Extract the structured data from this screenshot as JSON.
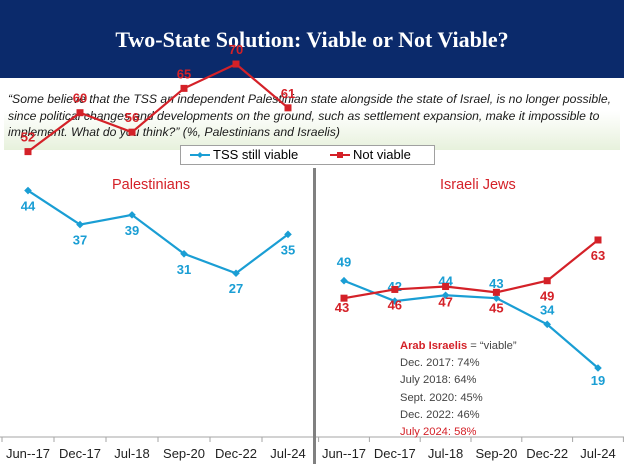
{
  "header": {
    "title": "Two-State Solution: Viable or Not Viable?"
  },
  "question": "“Some believe that the TSS an independent Palestinian state alongside the state of Israel, is no longer possible, since political changes and developments on the ground, such as settlement expansion, make it impossible to implement. What do you think?” (%, Palestinians and Israelis)",
  "colors": {
    "viable": "#1a9ed4",
    "not_viable": "#d42128",
    "banner": "#0b2a6b"
  },
  "chart_data": [
    {
      "type": "line",
      "title": "Palestinians",
      "categories": [
        "Jun--17",
        "Dec-17",
        "Jul-18",
        "Sep-20",
        "Dec-22",
        "Jul-24"
      ],
      "series": [
        {
          "name": "TSS still viable",
          "values": [
            44,
            37,
            39,
            31,
            27,
            35
          ]
        },
        {
          "name": "Not viable",
          "values": [
            52,
            60,
            56,
            65,
            70,
            61
          ]
        }
      ],
      "ylim": [
        0,
        100
      ],
      "grid": false,
      "legend": "top"
    },
    {
      "type": "line",
      "title": "Israeli Jews",
      "categories": [
        "Jun--17",
        "Dec-17",
        "Jul-18",
        "Sep-20",
        "Dec-22",
        "Jul-24"
      ],
      "series": [
        {
          "name": "TSS still viable",
          "values": [
            49,
            42,
            44,
            43,
            34,
            19
          ]
        },
        {
          "name": "Not viable",
          "values": [
            43,
            46,
            47,
            45,
            49,
            63
          ]
        }
      ],
      "ylim": [
        0,
        100
      ],
      "grid": false,
      "legend": "top",
      "annotation": {
        "heading_bold": "Arab Israelis",
        "heading_rest": " = “viable”",
        "lines": [
          "Dec. 2017: 74%",
          "July 2018: 64%",
          "Sept. 2020: 45%",
          "Dec. 2022: 46%"
        ],
        "last_line": "July 2024: 58%"
      }
    }
  ]
}
